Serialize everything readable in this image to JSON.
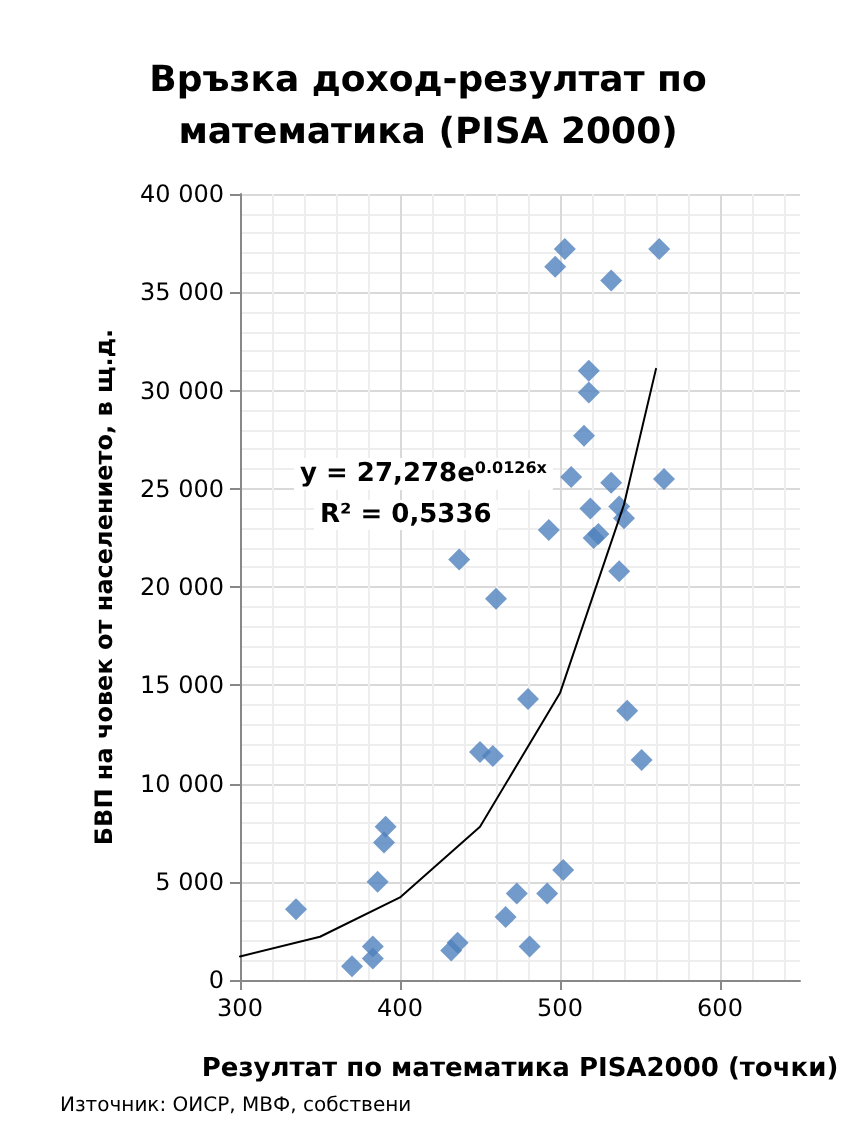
{
  "chart_data": {
    "type": "scatter",
    "title": "Връзка доход-резултат по\nматематика (PISA 2000)",
    "xlabel": "Резултат по математика PISA2000 (точки)",
    "ylabel": "БВП на човек от населението, в щ.д.",
    "series": [
      {
        "color": "#4f81bd",
        "marker": "diamond",
        "x": [
          503,
          497,
          532,
          562,
          518,
          518,
          515,
          507,
          532,
          565,
          519,
          537,
          540,
          521,
          524,
          493,
          437,
          537,
          460,
          480,
          450,
          458,
          542,
          551,
          391,
          390,
          386,
          335,
          502,
          473,
          492,
          466,
          436,
          432,
          481,
          383,
          383,
          370
        ],
        "values": [
          37200,
          36300,
          35600,
          37200,
          31000,
          29900,
          27700,
          25600,
          25300,
          25500,
          24000,
          24100,
          23500,
          22500,
          22700,
          22900,
          21400,
          20800,
          19400,
          14300,
          11600,
          11400,
          13700,
          11200,
          7800,
          7000,
          5000,
          3600,
          5600,
          4400,
          4400,
          3200,
          1900,
          1500,
          1700,
          1700,
          1100,
          700
        ]
      },
      {
        "type": "line",
        "color": "#000000",
        "marker": "none",
        "x": [
          300,
          350,
          400,
          450,
          500,
          540,
          560
        ],
        "values": [
          1200,
          2200,
          4200,
          7800,
          14600,
          24200,
          31100
        ]
      }
    ],
    "annotations": [
      "y = 27,278e$^{0.0126x}$",
      "R² = 0,5336",
      "Източник: ОИСР, МВФ, собствени"
    ],
    "xlim": [
      300,
      650
    ],
    "xticks": [
      300,
      400,
      500,
      600
    ],
    "ylim": [
      0,
      40000
    ],
    "yticks": [
      {
        "value": 0,
        "label": "0"
      },
      {
        "value": 5000,
        "label": "5 000"
      },
      {
        "value": 10000,
        "label": "10 000"
      },
      {
        "value": 15000,
        "label": "15 000"
      },
      {
        "value": 20000,
        "label": "20 000"
      },
      {
        "value": 25000,
        "label": "25 000"
      },
      {
        "value": 30000,
        "label": "30 000"
      },
      {
        "value": 35000,
        "label": "35 000"
      },
      {
        "value": 40000,
        "label": "40 000"
      }
    ],
    "grid": true
  }
}
